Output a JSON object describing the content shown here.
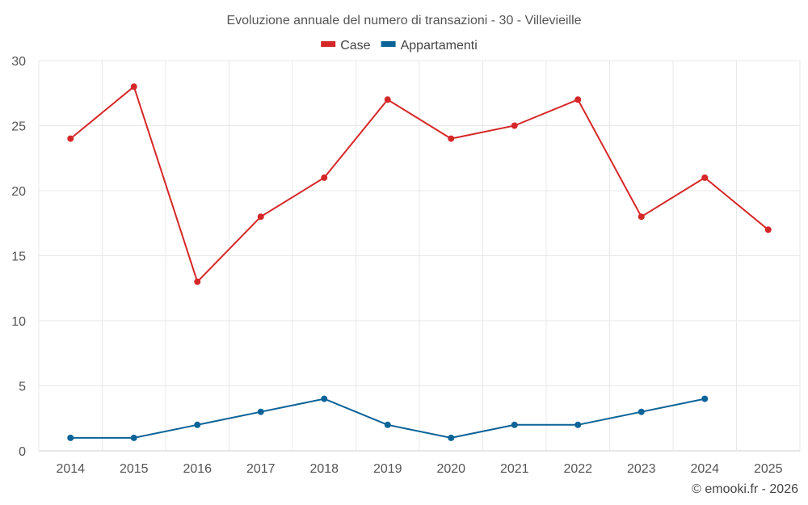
{
  "chart_data": {
    "type": "line",
    "title": "Evoluzione annuale del numero di transazioni - 30 - Villevieille",
    "categories": [
      "2014",
      "2015",
      "2016",
      "2017",
      "2018",
      "2019",
      "2020",
      "2021",
      "2022",
      "2023",
      "2024",
      "2025"
    ],
    "series": [
      {
        "name": "Case",
        "color": "#d62728",
        "values": [
          24,
          28,
          13,
          18,
          21,
          27,
          24,
          25,
          27,
          18,
          21,
          17
        ]
      },
      {
        "name": "Appartamenti",
        "color": "#0b6398",
        "values": [
          1,
          1,
          2,
          3,
          4,
          2,
          1,
          2,
          2,
          3,
          4,
          null
        ]
      }
    ],
    "ylim": [
      0,
      30
    ],
    "yticks": [
      0,
      5,
      10,
      15,
      20,
      25,
      30
    ],
    "xlabel": "",
    "ylabel": "",
    "grid": true,
    "legend_position": "top-center"
  },
  "credit": "© emooki.fr - 2026"
}
